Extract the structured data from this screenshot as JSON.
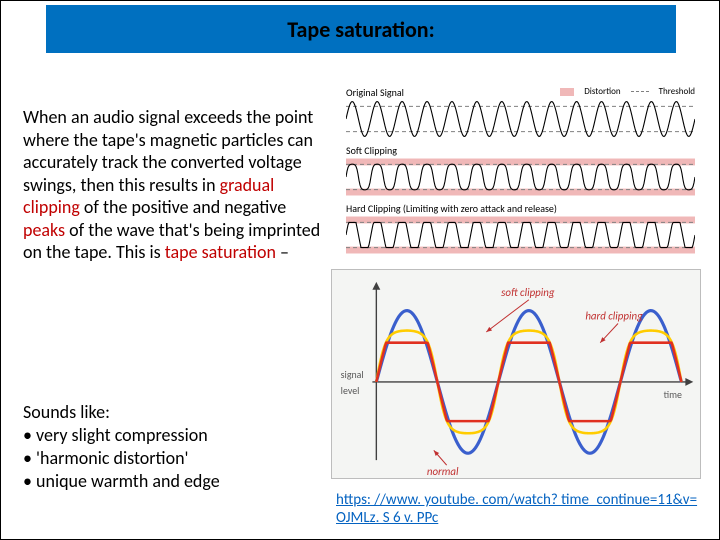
{
  "title": "Tape saturation:",
  "title_bar": {
    "bg": "#0070c0",
    "text_color": "#000000",
    "fontsize": 22
  },
  "paragraph": {
    "pre": "When an audio signal exceeds the point where the tape's magnetic particles can accurately track the converted voltage swings, then this results in ",
    "hl1": "gradual clipping",
    "mid1": " of the positive and negative ",
    "hl2": "peaks",
    "mid2": " of the wave that's being imprinted on the tape. This is ",
    "hl3": "tape saturation",
    "tail": " –"
  },
  "sounds": {
    "heading": "Sounds like:",
    "items": [
      "very slight compression",
      "'harmonic distortion'",
      "unique warmth and edge"
    ]
  },
  "link": {
    "url_text": "https: //www. youtube. com/watch? time_continue=11&v=OJMLz. S 6 v. PPc"
  },
  "stack": {
    "labels": {
      "original": "Original Signal",
      "soft": "Soft Clipping",
      "hard": "Hard Clipping  (Limiting with zero attack and release)"
    },
    "legend": {
      "distortion": "Distortion",
      "distortion_color": "#f0b8b8",
      "threshold": "Threshold",
      "threshold_stroke": "#808080"
    },
    "wave": {
      "stroke": "#000000",
      "stroke_width": 1.1,
      "threshold_y": 0.72,
      "distortion_band_color": "#f0b8b8",
      "cycles": 14
    }
  },
  "main_chart": {
    "bg": "#f4f5f3",
    "border": "#bdbdbd",
    "axis_color": "#404040",
    "xlabel_top": "signal",
    "xlabel_bottom": "level",
    "rlabel": "time",
    "curves": {
      "normal": {
        "color": "#3a5fcd",
        "width": 3.2,
        "amp": 1.0,
        "clip": 1.0,
        "label": "normal"
      },
      "soft": {
        "color": "#ffcc00",
        "width": 2.6,
        "amp": 1.0,
        "clip": 0.72,
        "label": "soft clipping",
        "soft": true
      },
      "hard": {
        "color": "#e03020",
        "width": 2.6,
        "amp": 1.0,
        "clip": 0.55,
        "label": "hard clipping"
      }
    },
    "cycles": 2.5,
    "label_color": "#c03030",
    "arrow_color": "#c03030"
  }
}
